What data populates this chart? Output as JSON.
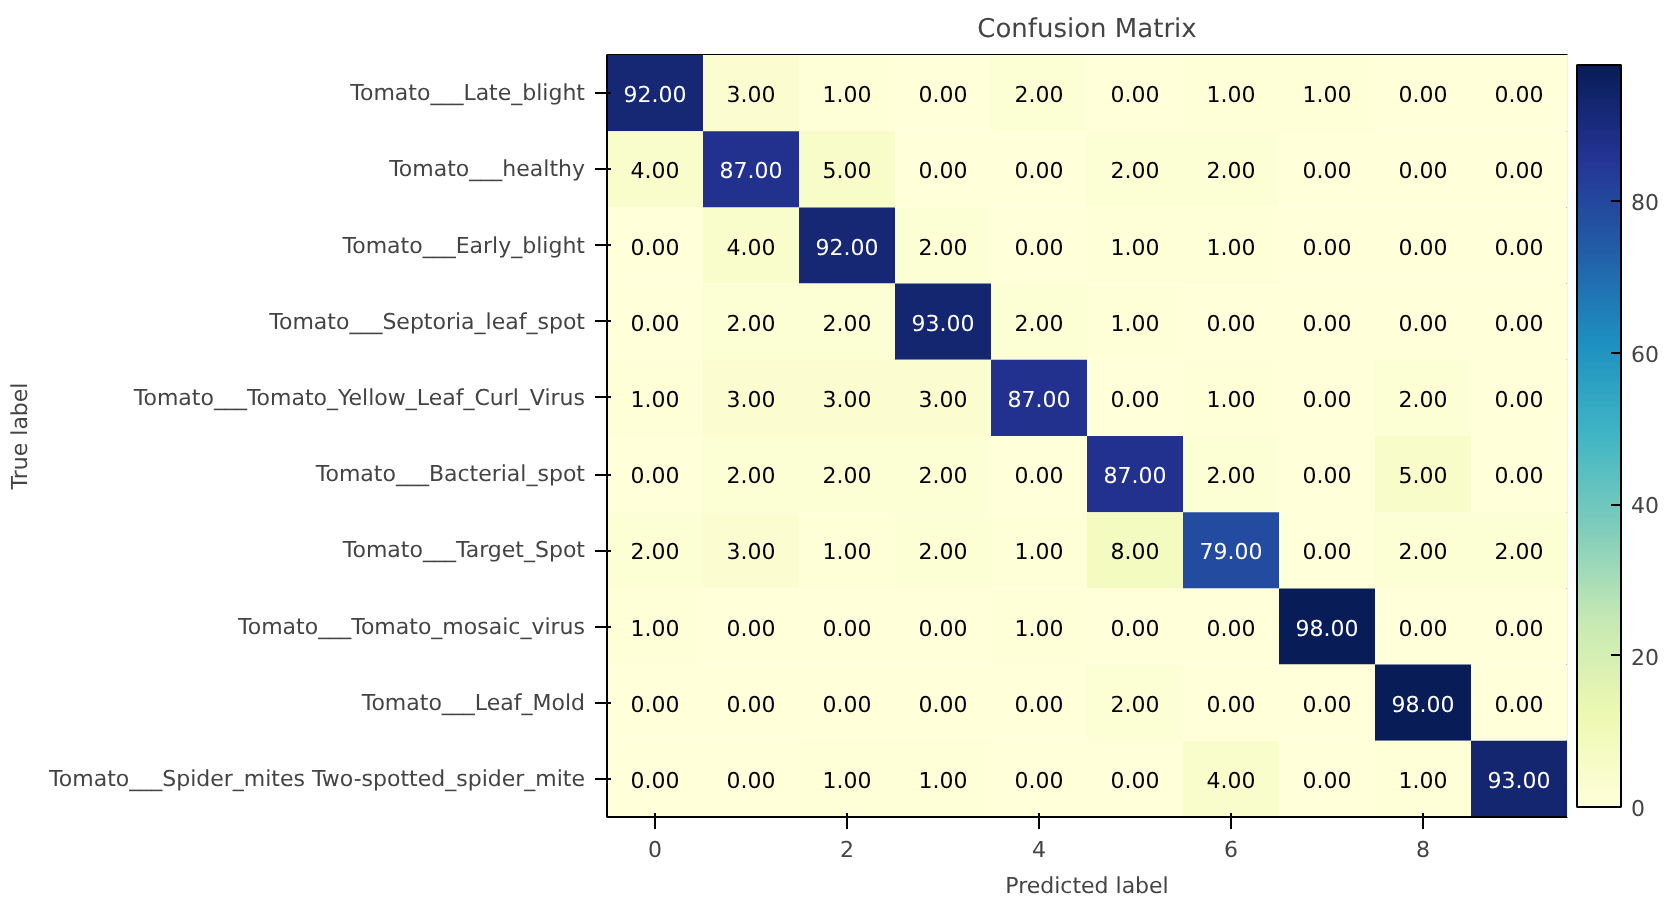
{
  "chart_data": {
    "type": "heatmap",
    "title": "Confusion Matrix",
    "xlabel": "Predicted label",
    "ylabel": "True label",
    "categories": [
      "0",
      null,
      "2",
      null,
      "4",
      null,
      "6",
      null,
      "8",
      null
    ],
    "y_categories": [
      "Tomato___Late_blight",
      "Tomato___healthy",
      "Tomato___Early_blight",
      "Tomato___Septoria_leaf_spot",
      "Tomato___Tomato_Yellow_Leaf_Curl_Virus",
      "Tomato___Bacterial_spot",
      "Tomato___Target_Spot",
      "Tomato___Tomato_mosaic_virus",
      "Tomato___Leaf_Mold",
      "Tomato___Spider_mites Two-spotted_spider_mite"
    ],
    "cells": [
      [
        92,
        3,
        1,
        0,
        2,
        0,
        1,
        1,
        0,
        0
      ],
      [
        4,
        87,
        5,
        0,
        0,
        2,
        2,
        0,
        0,
        0
      ],
      [
        0,
        4,
        92,
        2,
        0,
        1,
        1,
        0,
        0,
        0
      ],
      [
        0,
        2,
        2,
        93,
        2,
        1,
        0,
        0,
        0,
        0
      ],
      [
        1,
        3,
        3,
        3,
        87,
        0,
        1,
        0,
        2,
        0
      ],
      [
        0,
        2,
        2,
        2,
        0,
        87,
        2,
        0,
        5,
        0
      ],
      [
        2,
        3,
        1,
        2,
        1,
        8,
        79,
        0,
        2,
        2
      ],
      [
        1,
        0,
        0,
        0,
        1,
        0,
        0,
        98,
        0,
        0
      ],
      [
        0,
        0,
        0,
        0,
        0,
        2,
        0,
        0,
        98,
        0
      ],
      [
        0,
        0,
        1,
        1,
        0,
        0,
        4,
        0,
        1,
        93
      ]
    ],
    "cell_labels": [
      [
        "92.00",
        "3.00",
        "1.00",
        "0.00",
        "2.00",
        "0.00",
        "1.00",
        "1.00",
        "0.00",
        "0.00"
      ],
      [
        "4.00",
        "87.00",
        "5.00",
        "0.00",
        "0.00",
        "2.00",
        "2.00",
        "0.00",
        "0.00",
        "0.00"
      ],
      [
        "0.00",
        "4.00",
        "92.00",
        "2.00",
        "0.00",
        "1.00",
        "1.00",
        "0.00",
        "0.00",
        "0.00"
      ],
      [
        "0.00",
        "2.00",
        "2.00",
        "93.00",
        "2.00",
        "1.00",
        "0.00",
        "0.00",
        "0.00",
        "0.00"
      ],
      [
        "1.00",
        "3.00",
        "3.00",
        "3.00",
        "87.00",
        "0.00",
        "1.00",
        "0.00",
        "2.00",
        "0.00"
      ],
      [
        "0.00",
        "2.00",
        "2.00",
        "2.00",
        "0.00",
        "87.00",
        "2.00",
        "0.00",
        "5.00",
        "0.00"
      ],
      [
        "2.00",
        "3.00",
        "1.00",
        "2.00",
        "1.00",
        "8.00",
        "79.00",
        "0.00",
        "2.00",
        "2.00"
      ],
      [
        "1.00",
        "0.00",
        "0.00",
        "0.00",
        "1.00",
        "0.00",
        "0.00",
        "98.00",
        "0.00",
        "0.00"
      ],
      [
        "0.00",
        "0.00",
        "0.00",
        "0.00",
        "0.00",
        "2.00",
        "0.00",
        "0.00",
        "98.00",
        "0.00"
      ],
      [
        "0.00",
        "0.00",
        "1.00",
        "1.00",
        "0.00",
        "0.00",
        "4.00",
        "0.00",
        "1.00",
        "93.00"
      ]
    ],
    "clim": [
      0,
      98
    ],
    "cticks": [
      0,
      20,
      40,
      60,
      80
    ]
  }
}
